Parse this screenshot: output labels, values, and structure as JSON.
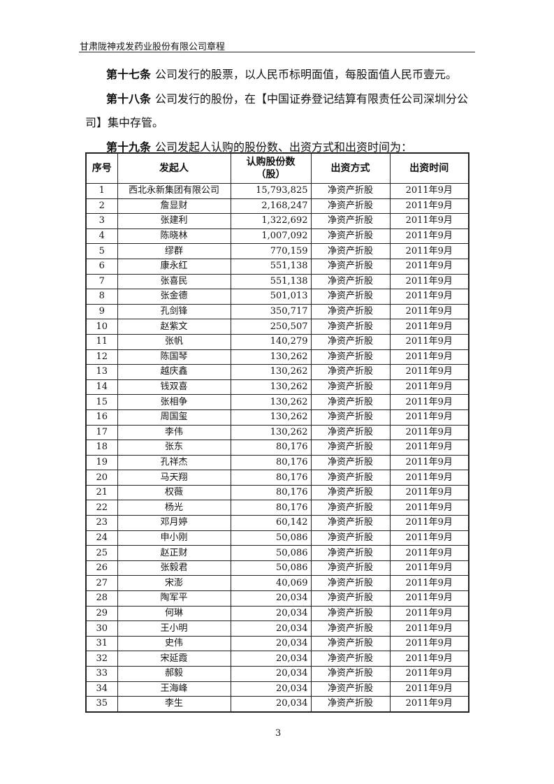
{
  "header": {
    "title": "甘肃陇神戎发药业股份有限公司章程"
  },
  "paragraphs": [
    {
      "label": "第十七条",
      "text": "公司发行的股票，以人民币标明面值，每股面值人民币壹元。"
    },
    {
      "label": "第十八条",
      "text": "公司发行的股份，在【中国证券登记结算有限责任公司深圳分公"
    },
    {
      "label": "",
      "text": "司】集中存管。"
    },
    {
      "label": "第十九条",
      "text": "公司发起人认购的股份数、出资方式和出资时间为："
    }
  ],
  "table": {
    "headers": [
      "序号",
      "发起人",
      "认购股份数（股）",
      "出资方式",
      "出资时间"
    ],
    "rows": [
      [
        "1",
        "西北永新集团有限公司",
        "15,793,825",
        "净资产折股",
        "2011年9月"
      ],
      [
        "2",
        "詹显财",
        "2,168,247",
        "净资产折股",
        "2011年9月"
      ],
      [
        "3",
        "张建利",
        "1,322,692",
        "净资产折股",
        "2011年9月"
      ],
      [
        "4",
        "陈晓林",
        "1,007,092",
        "净资产折股",
        "2011年9月"
      ],
      [
        "5",
        "缪群",
        "770,159",
        "净资产折股",
        "2011年9月"
      ],
      [
        "6",
        "康永红",
        "551,138",
        "净资产折股",
        "2011年9月"
      ],
      [
        "7",
        "张喜民",
        "551,138",
        "净资产折股",
        "2011年9月"
      ],
      [
        "8",
        "张金德",
        "501,013",
        "净资产折股",
        "2011年9月"
      ],
      [
        "9",
        "孔剑锋",
        "350,717",
        "净资产折股",
        "2011年9月"
      ],
      [
        "10",
        "赵紫文",
        "250,507",
        "净资产折股",
        "2011年9月"
      ],
      [
        "11",
        "张帆",
        "140,279",
        "净资产折股",
        "2011年9月"
      ],
      [
        "12",
        "陈国琴",
        "130,262",
        "净资产折股",
        "2011年9月"
      ],
      [
        "13",
        "越庆鑫",
        "130,262",
        "净资产折股",
        "2011年9月"
      ],
      [
        "14",
        "钱双喜",
        "130,262",
        "净资产折股",
        "2011年9月"
      ],
      [
        "15",
        "张相争",
        "130,262",
        "净资产折股",
        "2011年9月"
      ],
      [
        "16",
        "周国玺",
        "130,262",
        "净资产折股",
        "2011年9月"
      ],
      [
        "17",
        "李伟",
        "130,262",
        "净资产折股",
        "2011年9月"
      ],
      [
        "18",
        "张东",
        "80,176",
        "净资产折股",
        "2011年9月"
      ],
      [
        "19",
        "孔祥杰",
        "80,176",
        "净资产折股",
        "2011年9月"
      ],
      [
        "20",
        "马天翔",
        "80,176",
        "净资产折股",
        "2011年9月"
      ],
      [
        "21",
        "权薇",
        "80,176",
        "净资产折股",
        "2011年9月"
      ],
      [
        "22",
        "杨光",
        "80,176",
        "净资产折股",
        "2011年9月"
      ],
      [
        "23",
        "邓月婷",
        "60,142",
        "净资产折股",
        "2011年9月"
      ],
      [
        "24",
        "申小刚",
        "50,086",
        "净资产折股",
        "2011年9月"
      ],
      [
        "25",
        "赵正财",
        "50,086",
        "净资产折股",
        "2011年9月"
      ],
      [
        "26",
        "张毅君",
        "50,086",
        "净资产折股",
        "2011年9月"
      ],
      [
        "27",
        "宋澎",
        "40,069",
        "净资产折股",
        "2011年9月"
      ],
      [
        "28",
        "陶军平",
        "20,034",
        "净资产折股",
        "2011年9月"
      ],
      [
        "29",
        "何琳",
        "20,034",
        "净资产折股",
        "2011年9月"
      ],
      [
        "30",
        "王小明",
        "20,034",
        "净资产折股",
        "2011年9月"
      ],
      [
        "31",
        "史伟",
        "20,034",
        "净资产折股",
        "2011年9月"
      ],
      [
        "32",
        "宋延霞",
        "20,034",
        "净资产折股",
        "2011年9月"
      ],
      [
        "33",
        "郝毅",
        "20,034",
        "净资产折股",
        "2011年9月"
      ],
      [
        "34",
        "王海峰",
        "20,034",
        "净资产折股",
        "2011年9月"
      ],
      [
        "35",
        "李生",
        "20,034",
        "净资产折股",
        "2011年9月"
      ]
    ]
  },
  "footer": {
    "page_number": "3"
  }
}
